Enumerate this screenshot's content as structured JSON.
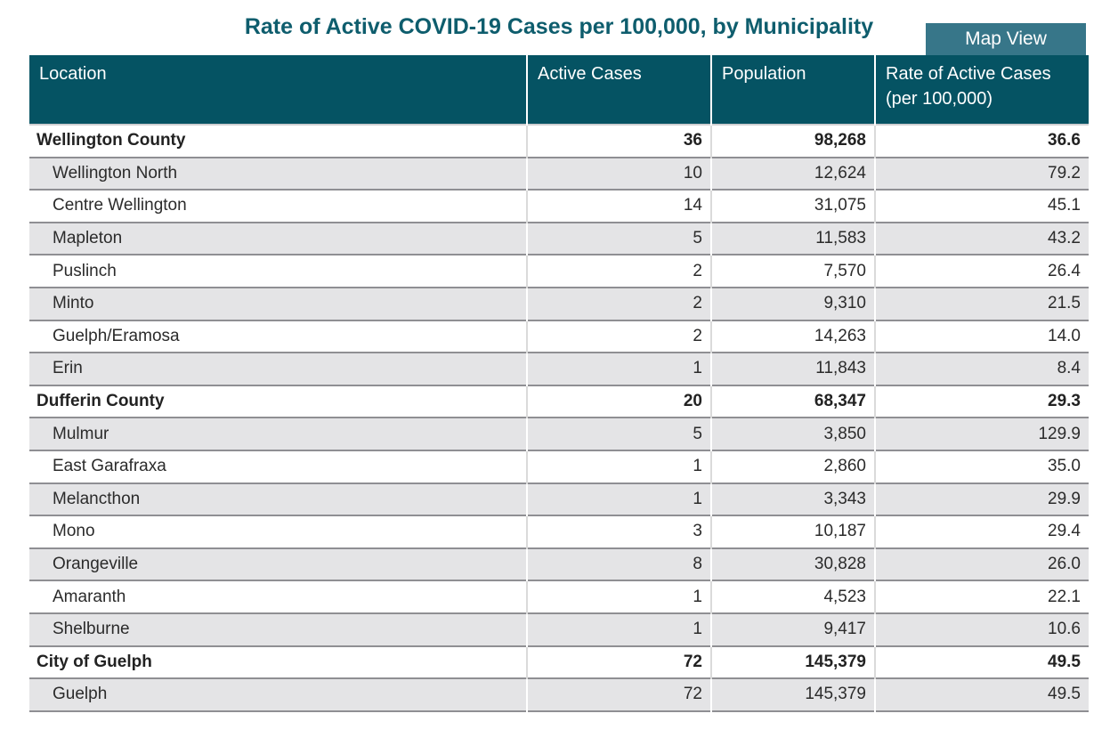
{
  "title": "Rate of Active COVID-19 Cases per 100,000, by Municipality",
  "toolbar": {
    "map_view_label": "Map View"
  },
  "colors": {
    "title_text": "#0e5d6d",
    "header_bg": "#055363",
    "button_bg": "#377689",
    "row_alt_bg": "#e4e4e6",
    "row_border": "#8f8f93"
  },
  "table": {
    "columns": [
      {
        "label": "Location"
      },
      {
        "label": "Active Cases"
      },
      {
        "label": "Population"
      },
      {
        "label": "Rate of Active Cases (per 100,000)"
      }
    ],
    "rows": [
      {
        "level": "county",
        "location": "Wellington County",
        "active_cases": "36",
        "population": "98,268",
        "rate": "36.6"
      },
      {
        "level": "municipality",
        "location": "Wellington North",
        "active_cases": "10",
        "population": "12,624",
        "rate": "79.2"
      },
      {
        "level": "municipality",
        "location": "Centre Wellington",
        "active_cases": "14",
        "population": "31,075",
        "rate": "45.1"
      },
      {
        "level": "municipality",
        "location": "Mapleton",
        "active_cases": "5",
        "population": "11,583",
        "rate": "43.2"
      },
      {
        "level": "municipality",
        "location": "Puslinch",
        "active_cases": "2",
        "population": "7,570",
        "rate": "26.4"
      },
      {
        "level": "municipality",
        "location": "Minto",
        "active_cases": "2",
        "population": "9,310",
        "rate": "21.5"
      },
      {
        "level": "municipality",
        "location": "Guelph/Eramosa",
        "active_cases": "2",
        "population": "14,263",
        "rate": "14.0"
      },
      {
        "level": "municipality",
        "location": "Erin",
        "active_cases": "1",
        "population": "11,843",
        "rate": "8.4"
      },
      {
        "level": "county",
        "location": "Dufferin County",
        "active_cases": "20",
        "population": "68,347",
        "rate": "29.3"
      },
      {
        "level": "municipality",
        "location": "Mulmur",
        "active_cases": "5",
        "population": "3,850",
        "rate": "129.9"
      },
      {
        "level": "municipality",
        "location": "East Garafraxa",
        "active_cases": "1",
        "population": "2,860",
        "rate": "35.0"
      },
      {
        "level": "municipality",
        "location": "Melancthon",
        "active_cases": "1",
        "population": "3,343",
        "rate": "29.9"
      },
      {
        "level": "municipality",
        "location": "Mono",
        "active_cases": "3",
        "population": "10,187",
        "rate": "29.4"
      },
      {
        "level": "municipality",
        "location": "Orangeville",
        "active_cases": "8",
        "population": "30,828",
        "rate": "26.0"
      },
      {
        "level": "municipality",
        "location": "Amaranth",
        "active_cases": "1",
        "population": "4,523",
        "rate": "22.1"
      },
      {
        "level": "municipality",
        "location": "Shelburne",
        "active_cases": "1",
        "population": "9,417",
        "rate": "10.6"
      },
      {
        "level": "county",
        "location": "City of Guelph",
        "active_cases": "72",
        "population": "145,379",
        "rate": "49.5"
      },
      {
        "level": "municipality",
        "location": "Guelph",
        "active_cases": "72",
        "population": "145,379",
        "rate": "49.5"
      }
    ]
  }
}
